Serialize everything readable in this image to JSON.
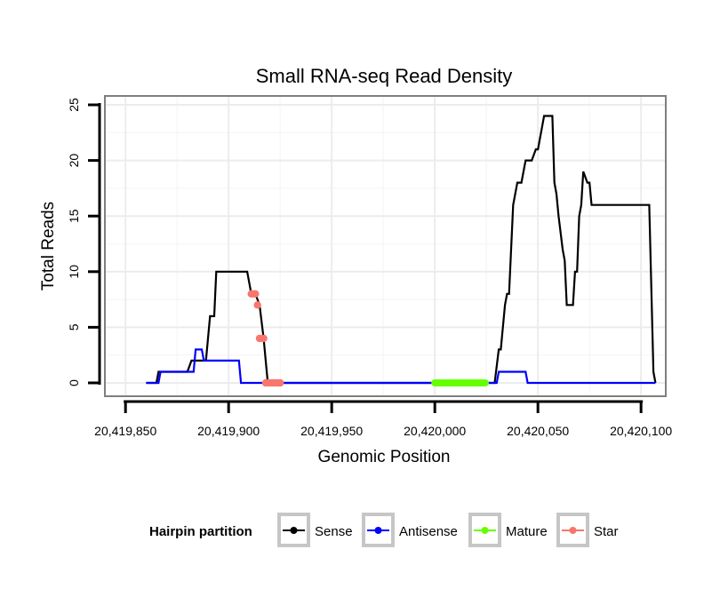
{
  "chart_data": {
    "type": "line",
    "title": "Small RNA-seq Read Density",
    "xlabel": "Genomic Position",
    "ylabel": "Total Reads",
    "xlim": [
      20419840,
      20420112
    ],
    "ylim": [
      -1.2,
      25.8
    ],
    "xticks": [
      {
        "value": 20419850,
        "label": "20,419,850"
      },
      {
        "value": 20419900,
        "label": "20,419,900"
      },
      {
        "value": 20419950,
        "label": "20,419,950"
      },
      {
        "value": 20420000,
        "label": "20,420,000"
      },
      {
        "value": 20420050,
        "label": "20,420,050"
      },
      {
        "value": 20420100,
        "label": "20,420,100"
      }
    ],
    "yticks": [
      {
        "value": 0,
        "label": "0"
      },
      {
        "value": 5,
        "label": "5"
      },
      {
        "value": 10,
        "label": "10"
      },
      {
        "value": 15,
        "label": "15"
      },
      {
        "value": 20,
        "label": "20"
      },
      {
        "value": 25,
        "label": "25"
      }
    ],
    "grid": true,
    "legend": {
      "title": "Hairpin partition",
      "placement": "bottom"
    },
    "series": [
      {
        "name": "Sense",
        "color": "#000000",
        "style": "line",
        "x": [
          20419860,
          20419865,
          20419866,
          20419874,
          20419876,
          20419880,
          20419882,
          20419889,
          20419891,
          20419893,
          20419894,
          20419904,
          20419907,
          20419909,
          20419911,
          20419913,
          20419915,
          20419917,
          20419918,
          20419919,
          20419920,
          20419921,
          20419925,
          20419925.5,
          20419926,
          20419960,
          20420000,
          20420028,
          20420029,
          20420031,
          20420032,
          20420034,
          20420035,
          20420036,
          20420038,
          20420040,
          20420041,
          20420042,
          20420044,
          20420045,
          20420047,
          20420049,
          20420050,
          20420052,
          20420053,
          20420055,
          20420056,
          20420057,
          20420058,
          20420059,
          20420060,
          20420062,
          20420063,
          20420064,
          20420065,
          20420066,
          20420067,
          20420068,
          20420069,
          20420070,
          20420071,
          20420072,
          20420074,
          20420075,
          20420076,
          20420077,
          20420078,
          20420079,
          20420080,
          20420081,
          20420082,
          20420083,
          20420088,
          20420093,
          20420095,
          20420098,
          20420099,
          20420100,
          20420101,
          20420102,
          20420103,
          20420104,
          20420106,
          20420107
        ],
        "values": [
          0,
          0,
          1,
          1,
          1,
          1,
          2,
          2,
          6,
          6,
          10,
          10,
          10,
          10,
          8,
          8,
          7,
          4,
          2,
          0,
          0,
          0,
          0,
          0,
          0,
          0,
          0,
          0,
          0,
          3,
          3,
          7,
          8,
          8,
          16,
          18,
          18,
          18,
          20,
          20,
          20,
          21,
          21,
          23,
          24,
          24,
          24,
          24,
          18,
          17,
          15,
          12,
          11,
          7,
          7,
          7,
          7,
          10,
          10,
          15,
          16,
          19,
          18,
          18,
          16,
          16,
          16,
          16,
          16,
          16,
          16,
          16,
          16,
          16,
          16,
          16,
          16,
          16,
          16,
          16,
          16,
          16,
          1,
          0
        ]
      },
      {
        "name": "Antisense",
        "color": "#0000ff",
        "style": "line",
        "x": [
          20419860,
          20419866,
          20419867,
          20419876,
          20419877,
          20419883,
          20419884,
          20419887,
          20419888,
          20419891,
          20419894,
          20419902,
          20419904,
          20419905,
          20419906,
          20419919,
          20419960,
          20420000,
          20420030,
          20420031,
          20420044,
          20420045,
          20420080,
          20420107
        ],
        "values": [
          0,
          0,
          1,
          1,
          1,
          1,
          3,
          3,
          2,
          2,
          2,
          2,
          2,
          2,
          0,
          0,
          0,
          0,
          0,
          1,
          1,
          0,
          0,
          0
        ]
      },
      {
        "name": "Mature",
        "color": "#66ff00",
        "style": "thick",
        "x": [
          20420000,
          20420024.5
        ],
        "values": [
          0,
          0
        ]
      },
      {
        "name": "Star",
        "color": "#f8766d",
        "style": "points",
        "x": [
          20419911,
          20419912,
          20419913,
          20419914,
          20419915,
          20419916,
          20419917,
          20419918,
          20419919,
          20419920,
          20419921,
          20419922,
          20419923,
          20419924,
          20419925
        ],
        "values": [
          8,
          8,
          8,
          7,
          4,
          4,
          4,
          0,
          0,
          0,
          0,
          0,
          0,
          0,
          0
        ]
      }
    ]
  }
}
